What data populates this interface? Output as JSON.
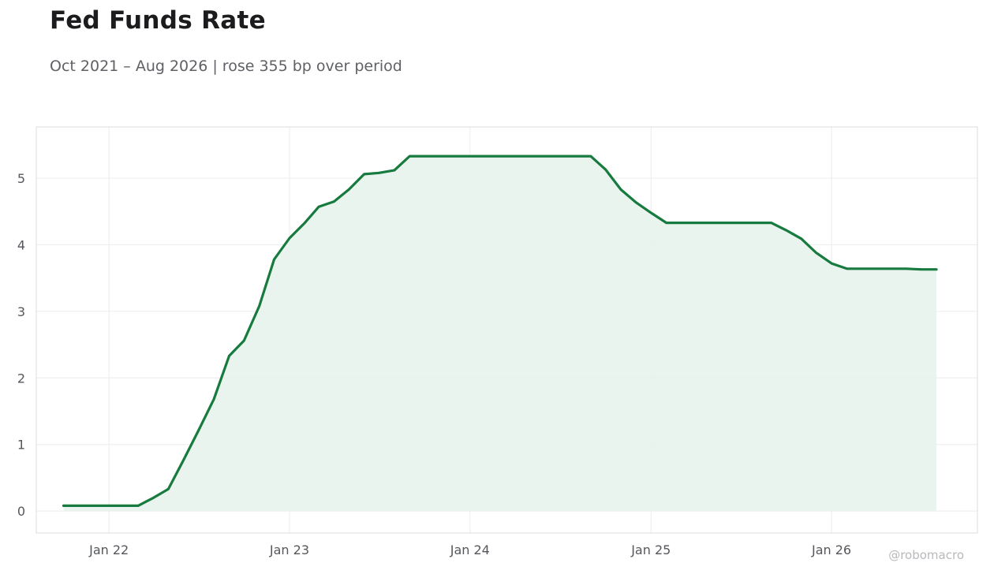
{
  "title": "Fed Funds Rate",
  "subtitle": "Oct 2021 – Aug 2026 | rose 355 bp over period",
  "watermark": "@robomacro",
  "colors": {
    "line": "#177a3e",
    "fill": "#e8f3ec",
    "grid": "#ececec",
    "frame": "#dddddd"
  },
  "chart_data": {
    "type": "area",
    "title": "Fed Funds Rate",
    "subtitle": "Oct 2021 – Aug 2026 | rose 355 bp over period",
    "xlabel": "",
    "ylabel": "",
    "x_ticks": [
      {
        "label": "Jan 22",
        "date": "2022-01"
      },
      {
        "label": "Jan 23",
        "date": "2023-01"
      },
      {
        "label": "Jan 24",
        "date": "2024-01"
      },
      {
        "label": "Jan 25",
        "date": "2025-01"
      },
      {
        "label": "Jan 26",
        "date": "2026-01"
      }
    ],
    "y_ticks": [
      0,
      1,
      2,
      3,
      4,
      5
    ],
    "xlim": [
      "2021-08-07",
      "2026-10-23"
    ],
    "ylim": [
      -0.33,
      5.77
    ],
    "grid": true,
    "series": [
      {
        "x": [
          "2021-10",
          "2021-11",
          "2021-12",
          "2022-01",
          "2022-02",
          "2022-03",
          "2022-04",
          "2022-05",
          "2022-06",
          "2022-07",
          "2022-08",
          "2022-09",
          "2022-10",
          "2022-11",
          "2022-12",
          "2023-01",
          "2023-02",
          "2023-03",
          "2023-04",
          "2023-05",
          "2023-06",
          "2023-07",
          "2023-08",
          "2023-09",
          "2023-10",
          "2023-11",
          "2023-12",
          "2024-01",
          "2024-02",
          "2024-03",
          "2024-04",
          "2024-05",
          "2024-06",
          "2024-07",
          "2024-08",
          "2024-09",
          "2024-10",
          "2024-11",
          "2024-12",
          "2025-01",
          "2025-02",
          "2025-03",
          "2025-04",
          "2025-05",
          "2025-06",
          "2025-07",
          "2025-08",
          "2025-09",
          "2025-10",
          "2025-11",
          "2025-12",
          "2026-01",
          "2026-02",
          "2026-03",
          "2026-04",
          "2026-05",
          "2026-06",
          "2026-07",
          "2026-08"
        ],
        "values": [
          0.08,
          0.08,
          0.08,
          0.08,
          0.08,
          0.08,
          0.2,
          0.33,
          0.77,
          1.21,
          1.68,
          2.33,
          2.56,
          3.08,
          3.78,
          4.1,
          4.33,
          4.57,
          4.65,
          4.83,
          5.06,
          5.08,
          5.12,
          5.33,
          5.33,
          5.33,
          5.33,
          5.33,
          5.33,
          5.33,
          5.33,
          5.33,
          5.33,
          5.33,
          5.33,
          5.33,
          5.13,
          4.83,
          4.64,
          4.48,
          4.33,
          4.33,
          4.33,
          4.33,
          4.33,
          4.33,
          4.33,
          4.33,
          4.22,
          4.09,
          3.88,
          3.72,
          3.64,
          3.64,
          3.64,
          3.64,
          3.64,
          3.63,
          3.63
        ]
      }
    ]
  }
}
